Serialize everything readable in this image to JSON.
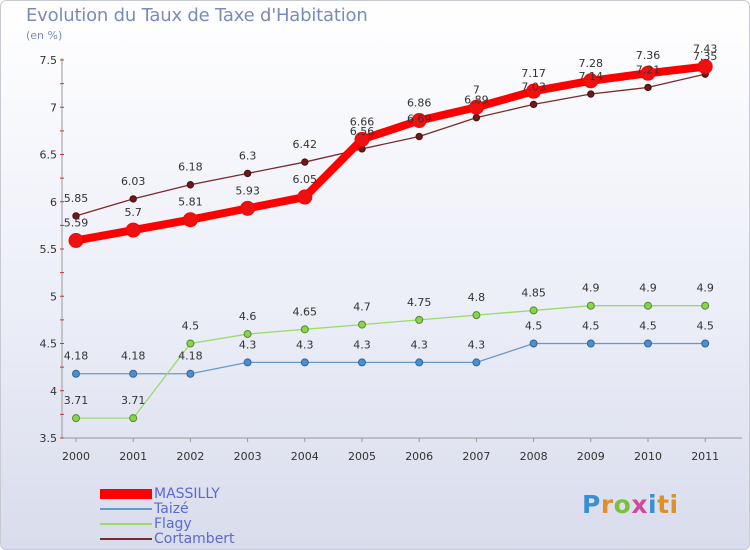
{
  "header": {
    "title": "Evolution du Taux de Taxe d'Habitation",
    "unit": "(en %)"
  },
  "brand": {
    "name": "Proxiti"
  },
  "chart_data": {
    "type": "line",
    "x": [
      "2000",
      "2001",
      "2002",
      "2003",
      "2004",
      "2005",
      "2006",
      "2007",
      "2008",
      "2009",
      "2010",
      "2011"
    ],
    "ylim": [
      3.5,
      7.5
    ],
    "yticks": [
      "3.5",
      "4",
      "4.5",
      "5",
      "5.5",
      "6",
      "6.5",
      "7",
      "7.5"
    ],
    "grid": false,
    "legend": "bottom-left",
    "series": [
      {
        "name": "MASSILLY",
        "color": "#ff0000",
        "values": [
          5.59,
          5.7,
          5.81,
          5.93,
          6.05,
          6.66,
          6.86,
          7,
          7.17,
          7.28,
          7.36,
          7.43
        ],
        "labels": [
          "5.59",
          "5.7",
          "5.81",
          "5.93",
          "6.05",
          "6.66",
          "6.86",
          "7",
          "7.17",
          "7.28",
          "7.36",
          "7.43"
        ]
      },
      {
        "name": "Taizé",
        "color": "#6699cc",
        "values": [
          4.18,
          4.18,
          4.18,
          4.3,
          4.3,
          4.3,
          4.3,
          4.3,
          4.5,
          4.5,
          4.5,
          4.5
        ],
        "labels": [
          "4.18",
          "4.18",
          "4.18",
          "4.3",
          "4.3",
          "4.3",
          "4.3",
          "4.3",
          "4.5",
          "4.5",
          "4.5",
          "4.5"
        ]
      },
      {
        "name": "Flagy",
        "color": "#99dd66",
        "values": [
          3.71,
          3.71,
          4.5,
          4.6,
          4.65,
          4.7,
          4.75,
          4.8,
          4.85,
          4.9,
          4.9,
          4.9
        ],
        "labels": [
          "3.71",
          "3.71",
          "4.5",
          "4.6",
          "4.65",
          "4.7",
          "4.75",
          "4.8",
          "4.85",
          "4.9",
          "4.9",
          "4.9"
        ]
      },
      {
        "name": "Cortambert",
        "color": "#7a2a2a",
        "values": [
          5.85,
          6.03,
          6.18,
          6.3,
          6.42,
          6.56,
          6.69,
          6.89,
          7.03,
          7.14,
          7.21,
          7.35
        ],
        "labels": [
          "5.85",
          "6.03",
          "6.18",
          "6.3",
          "6.42",
          "6.56",
          "6.69",
          "6.89",
          "7.03",
          "7.14",
          "7.21",
          "7.35"
        ]
      }
    ]
  }
}
